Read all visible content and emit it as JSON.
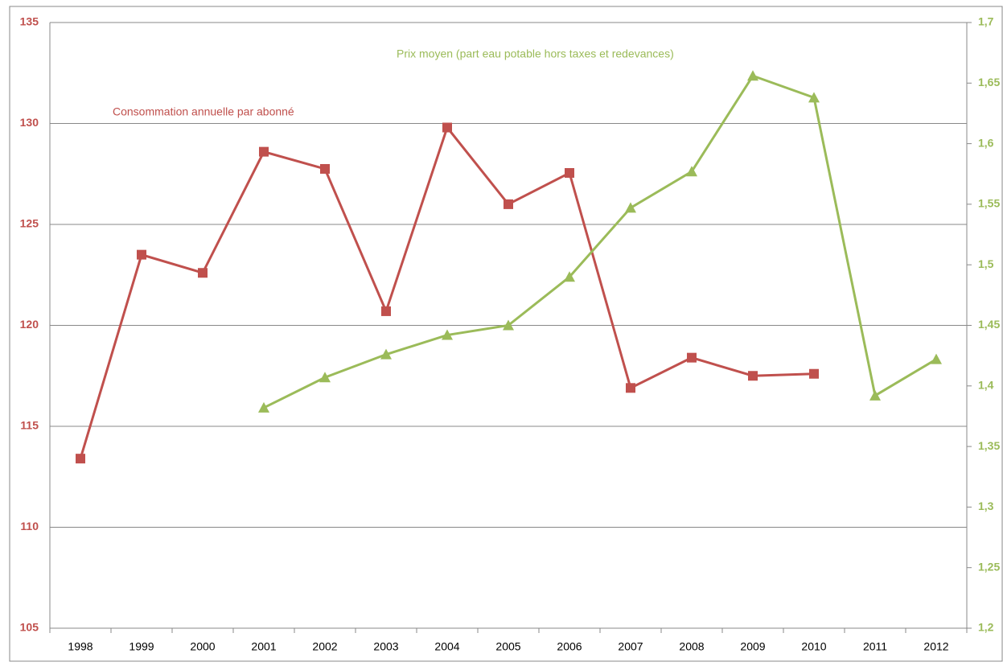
{
  "chart_data": {
    "type": "line",
    "categories": [
      "1998",
      "1999",
      "2000",
      "2001",
      "2002",
      "2003",
      "2004",
      "2005",
      "2006",
      "2007",
      "2008",
      "2009",
      "2010",
      "2011",
      "2012"
    ],
    "series": [
      {
        "name": "Consommation annuelle par abonné",
        "color": "#c0504d",
        "marker": "square",
        "axis": "y",
        "values": [
          113.4,
          123.5,
          122.6,
          128.6,
          127.75,
          120.7,
          129.8,
          126.0,
          127.55,
          116.9,
          118.4,
          117.5,
          117.6,
          null,
          null
        ]
      },
      {
        "name": "Prix moyen (part eau potable hors taxes et redevances)",
        "color": "#9bbb59",
        "marker": "triangle",
        "axis": "y2",
        "values": [
          null,
          null,
          null,
          1.382,
          1.407,
          1.426,
          1.442,
          1.45,
          1.49,
          1.547,
          1.577,
          1.656,
          1.638,
          1.392,
          1.422
        ]
      }
    ],
    "ylim": [
      105,
      135
    ],
    "yticks": [
      105,
      110,
      115,
      120,
      125,
      130,
      135
    ],
    "y2lim": [
      1.2,
      1.7
    ],
    "y2ticks": [
      {
        "value": 1.2,
        "label": "1,2"
      },
      {
        "value": 1.25,
        "label": "1,25"
      },
      {
        "value": 1.3,
        "label": "1,3"
      },
      {
        "value": 1.35,
        "label": "1,35"
      },
      {
        "value": 1.4,
        "label": "1,4"
      },
      {
        "value": 1.45,
        "label": "1,45"
      },
      {
        "value": 1.5,
        "label": "1,5"
      },
      {
        "value": 1.55,
        "label": "1,55"
      },
      {
        "value": 1.6,
        "label": "1,6"
      },
      {
        "value": 1.65,
        "label": "1,65"
      },
      {
        "value": 1.7,
        "label": "1,7"
      }
    ],
    "grid": true
  }
}
